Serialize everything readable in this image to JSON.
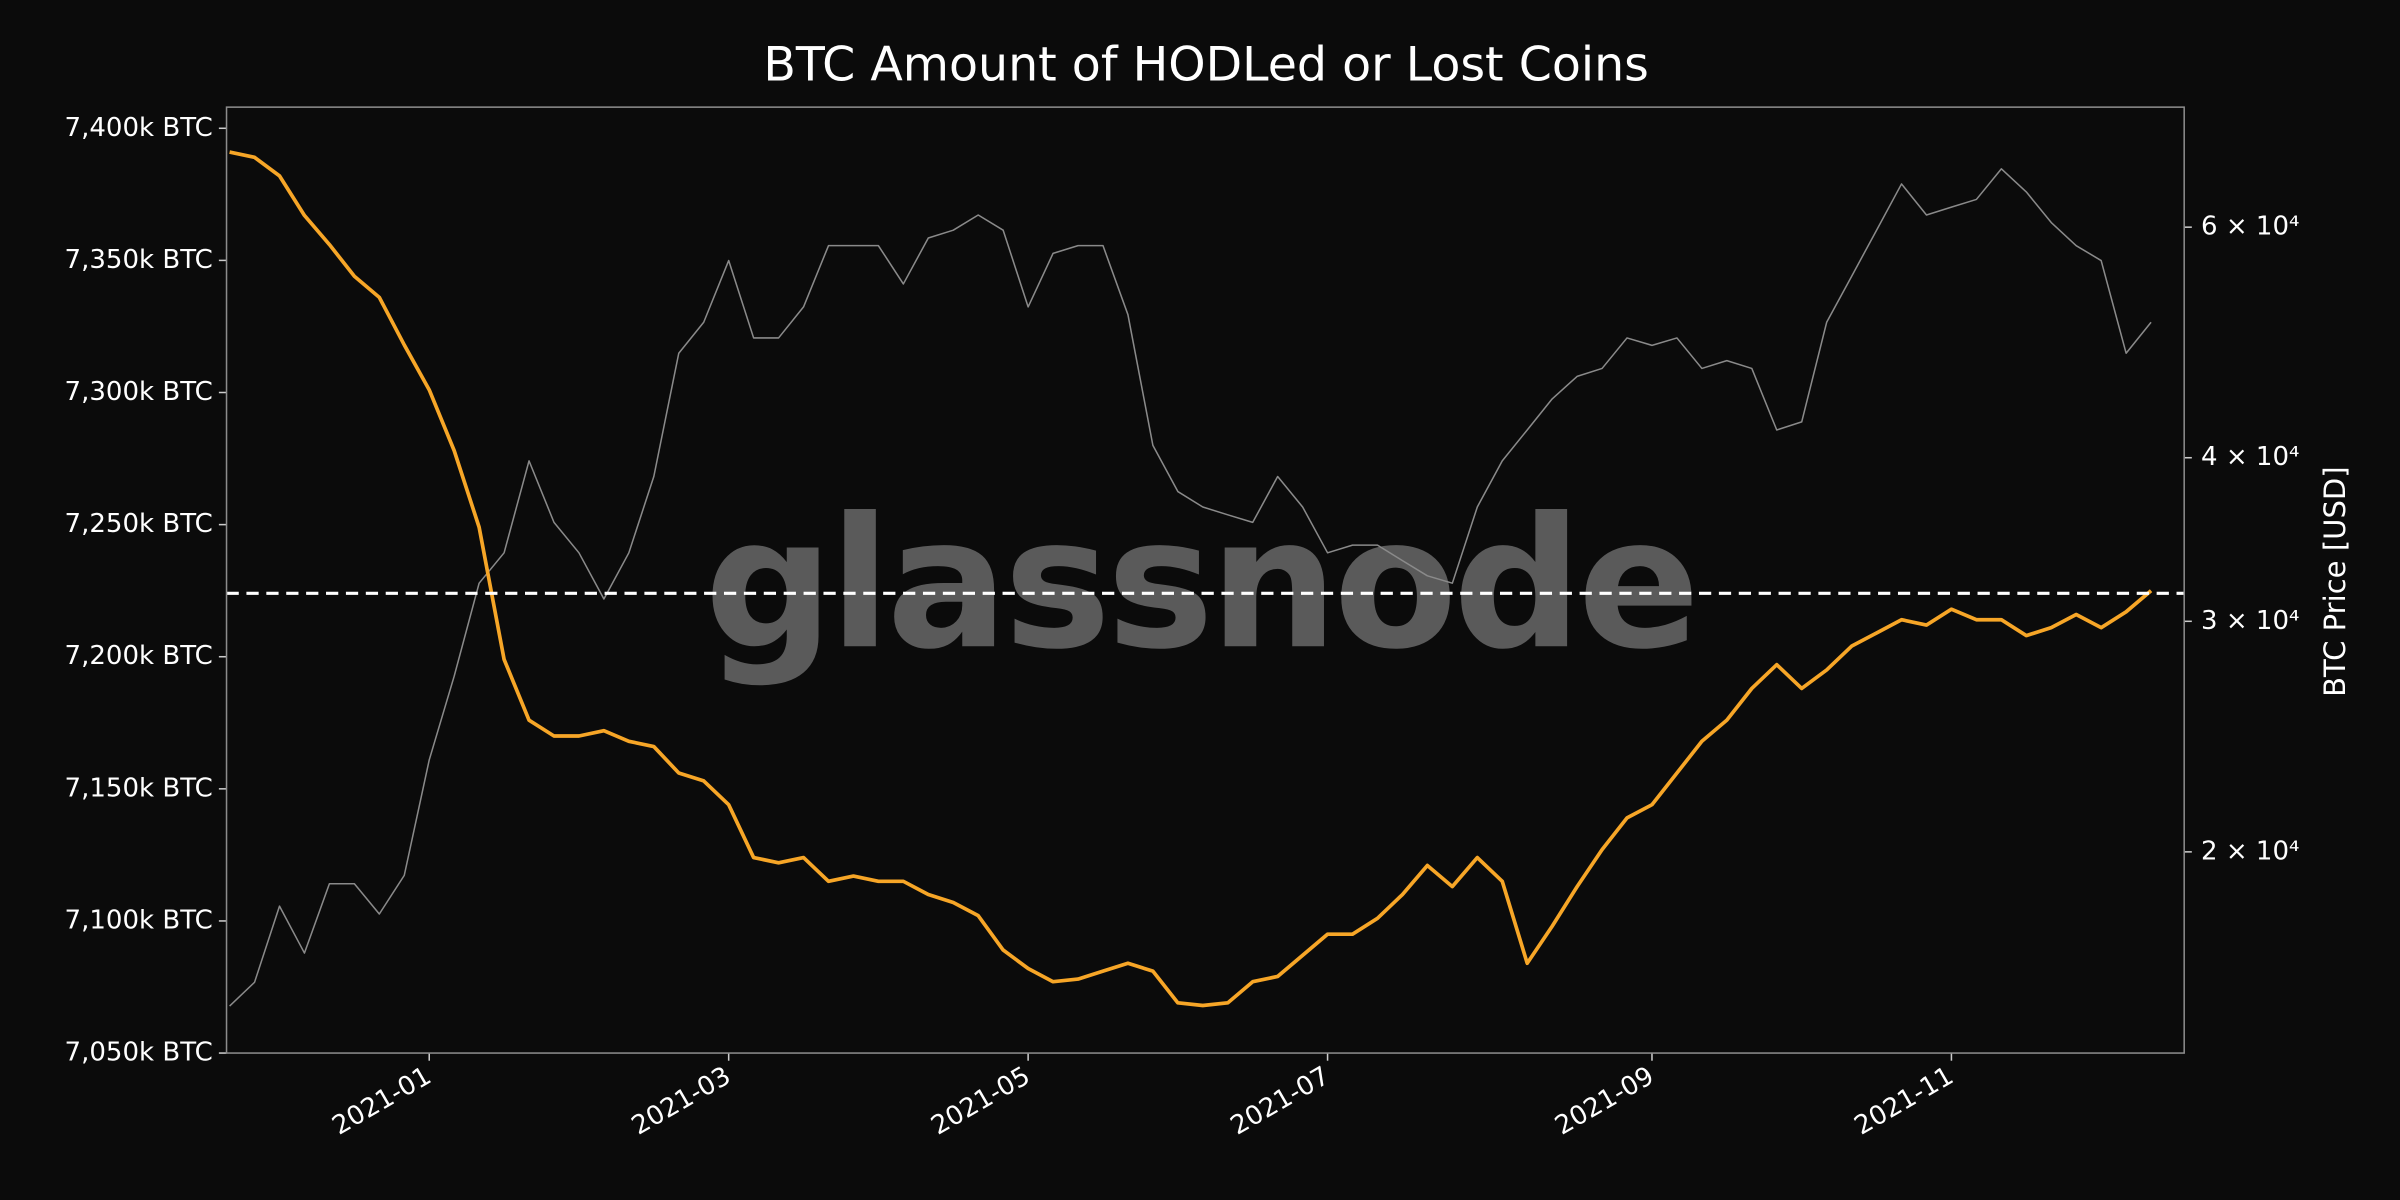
{
  "chart_data": {
    "type": "line",
    "title": "BTC Amount of HODLed or Lost Coins",
    "y2label": "BTC Price [USD]",
    "watermark": "glassnode",
    "categories": [
      null,
      null,
      null,
      null,
      null,
      null,
      null,
      null,
      "2021-01",
      null,
      null,
      null,
      null,
      null,
      null,
      null,
      null,
      null,
      null,
      null,
      "2021-03",
      null,
      null,
      null,
      null,
      null,
      null,
      null,
      null,
      null,
      null,
      null,
      "2021-05",
      null,
      null,
      null,
      null,
      null,
      null,
      null,
      null,
      null,
      null,
      null,
      "2021-07",
      null,
      null,
      null,
      null,
      null,
      null,
      null,
      null,
      null,
      null,
      null,
      null,
      "2021-09",
      null,
      null,
      null,
      null,
      null,
      null,
      null,
      null,
      null,
      null,
      null,
      "2021-11",
      null,
      null,
      null,
      null,
      null,
      null,
      null,
      null
    ],
    "series": [
      {
        "color": "#f7a627",
        "values": [
          7391,
          7389,
          7382,
          7367,
          7356,
          7344,
          7336,
          7318,
          7301,
          7278,
          7249,
          7199,
          7176,
          7170,
          7170,
          7172,
          7168,
          7166,
          7156,
          7153,
          7144,
          7124,
          7122,
          7124,
          7115,
          7117,
          7115,
          7115,
          7110,
          7107,
          7102,
          7089,
          7082,
          7077,
          7078,
          7081,
          7084,
          7081,
          7069,
          7068,
          7069,
          7077,
          7079,
          7087,
          7095,
          7095,
          7101,
          7110,
          7121,
          7113,
          7124,
          7115,
          7084,
          7098,
          7113,
          7127,
          7139,
          7144,
          7156,
          7168,
          7176,
          7188,
          7197,
          7188,
          7195,
          7204,
          7209,
          7214,
          7212,
          7218,
          7214,
          7214,
          7208,
          7211,
          7216,
          7211,
          7217,
          7225
        ]
      },
      {
        "color": "#8a8a8a",
        "axis": "y2",
        "values": [
          15250,
          15900,
          18180,
          16740,
          18910,
          18910,
          17930,
          19190,
          23510,
          27240,
          32080,
          33840,
          39780,
          35700,
          33840,
          31200,
          33840,
          38700,
          48070,
          50760,
          56580,
          49380,
          49380,
          52150,
          58080,
          58080,
          58080,
          54300,
          58870,
          59680,
          61300,
          59680,
          52150,
          57300,
          58080,
          58080,
          51440,
          40880,
          37690,
          36680,
          36180,
          35700,
          38700,
          36680,
          33840,
          34300,
          34300,
          33380,
          32500,
          32080,
          36680,
          39780,
          42000,
          44360,
          46150,
          46800,
          49380,
          48740,
          49380,
          46800,
          47450,
          46800,
          42000,
          42600,
          50760,
          55030,
          59680,
          64740,
          61300,
          62150,
          63000,
          66480,
          63840,
          60490,
          58080,
          56580,
          48070,
          50760
        ]
      }
    ],
    "reference_line": 7224,
    "ylim": [
      7050,
      7408
    ],
    "yticks": [
      {
        "value": 7050,
        "label": "7,050k BTC"
      },
      {
        "value": 7100,
        "label": "7,100k BTC"
      },
      {
        "value": 7150,
        "label": "7,150k BTC"
      },
      {
        "value": 7200,
        "label": "7,200k BTC"
      },
      {
        "value": 7250,
        "label": "7,250k BTC"
      },
      {
        "value": 7300,
        "label": "7,300k BTC"
      },
      {
        "value": 7350,
        "label": "7,350k BTC"
      },
      {
        "value": 7400,
        "label": "7,400k BTC"
      }
    ],
    "y2scale": "log",
    "y2lim": [
      14040,
      74100
    ],
    "y2ticks": [
      {
        "value": 20000,
        "label": "2 × 10⁴"
      },
      {
        "value": 30000,
        "label": "3 × 10⁴"
      },
      {
        "value": 40000,
        "label": "4 × 10⁴"
      },
      {
        "value": 60000,
        "label": "6 × 10⁴"
      }
    ]
  }
}
